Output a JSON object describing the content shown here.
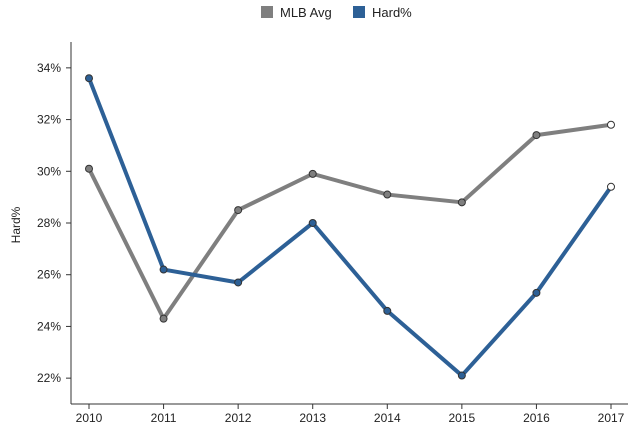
{
  "chart_data": {
    "type": "line",
    "title": "",
    "ylabel": "Hard%",
    "xlabel": "",
    "x": [
      "2010",
      "2011",
      "2012",
      "2013",
      "2014",
      "2015",
      "2016",
      "2017"
    ],
    "ylim": [
      21,
      35
    ],
    "yticks": [
      22,
      24,
      26,
      28,
      30,
      32,
      34
    ],
    "ytick_labels": [
      "22%",
      "24%",
      "26%",
      "28%",
      "30%",
      "32%",
      "34%"
    ],
    "grid": false,
    "legend": "top-center",
    "series": [
      {
        "name": "MLB Avg",
        "color": "#7f7f7f",
        "values": [
          30.1,
          24.3,
          28.5,
          29.9,
          29.1,
          28.8,
          31.4,
          31.8
        ]
      },
      {
        "name": "Hard%",
        "color": "#2d6096",
        "values": [
          33.6,
          26.2,
          25.7,
          28.0,
          24.6,
          22.1,
          25.3,
          29.4
        ]
      }
    ]
  }
}
